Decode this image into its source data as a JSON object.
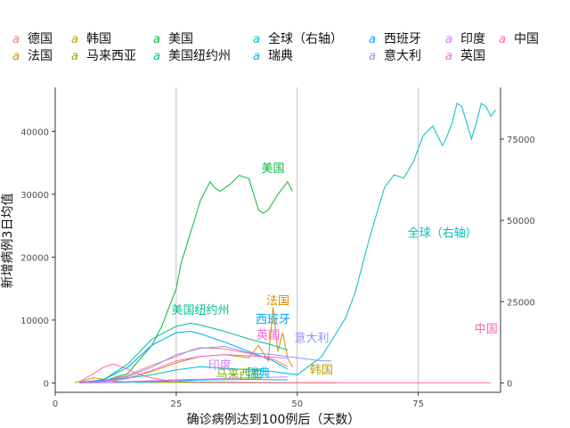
{
  "chart_data": {
    "type": "line",
    "title": "",
    "xlabel": "确诊病例达到100例后（天数）",
    "ylabel": "新增病例3日均值",
    "xlim": [
      0,
      92
    ],
    "ylim_left": [
      -1500,
      47000
    ],
    "ylim_right": [
      -2900,
      90900
    ],
    "x_ticks": [
      0,
      25,
      50,
      75
    ],
    "y_ticks_left": [
      0,
      10000,
      20000,
      30000,
      40000
    ],
    "y_ticks_right": [
      0,
      25000,
      50000,
      75000
    ],
    "grid": "vertical lines at x = 25, 50, 75",
    "legend_position": "top",
    "series": [
      {
        "name": "德国",
        "color": "#F8766D",
        "axis": "left",
        "x": [
          5,
          10,
          15,
          20,
          25,
          28,
          30,
          35,
          40,
          45,
          48
        ],
        "y": [
          50,
          300,
          1200,
          2800,
          4200,
          5200,
          5600,
          5400,
          4700,
          3800,
          2600
        ],
        "label_text": "",
        "label_x": 0,
        "label_y": 0
      },
      {
        "name": "法国",
        "color": "#DE8C00",
        "axis": "left",
        "x": [
          5,
          10,
          15,
          20,
          25,
          30,
          35,
          40,
          42,
          44,
          45,
          46,
          47,
          48,
          49
        ],
        "y": [
          50,
          200,
          800,
          1800,
          3200,
          4200,
          4500,
          4000,
          6000,
          3500,
          12000,
          5000,
          8000,
          4000,
          2500
        ],
        "label_text": "法国",
        "label_x": 46,
        "label_y": 12500
      },
      {
        "name": "韩国",
        "color": "#B79F00",
        "axis": "left",
        "x": [
          4,
          6,
          8,
          10,
          12,
          15,
          20,
          25,
          30,
          35,
          40,
          45,
          50,
          55,
          58
        ],
        "y": [
          50,
          400,
          800,
          600,
          300,
          150,
          100,
          90,
          60,
          40,
          30,
          20,
          15,
          10,
          10
        ],
        "label_text": "韩国",
        "label_x": 55,
        "label_y": 1500
      },
      {
        "name": "马来西亚",
        "color": "#7CAE00",
        "axis": "left",
        "x": [
          5,
          10,
          15,
          20,
          25,
          30,
          35,
          40,
          45
        ],
        "y": [
          20,
          60,
          120,
          160,
          150,
          130,
          110,
          80,
          50
        ],
        "label_text": "马来西亚",
        "label_x": 38,
        "label_y": 800
      },
      {
        "name": "美国",
        "color": "#00BA38",
        "axis": "left",
        "x": [
          5,
          10,
          15,
          20,
          22,
          25,
          26,
          28,
          30,
          32,
          33,
          34,
          36,
          38,
          40,
          41,
          42,
          43,
          44,
          46,
          48,
          49
        ],
        "y": [
          50,
          300,
          1500,
          6000,
          9000,
          15000,
          19000,
          24000,
          29000,
          32000,
          31000,
          30500,
          31500,
          33000,
          32500,
          30000,
          27500,
          27000,
          27500,
          30000,
          32000,
          30500
        ],
        "label_text": "美国",
        "label_x": 45,
        "label_y": 33500
      },
      {
        "name": "美国纽约州",
        "color": "#00C08B",
        "axis": "left",
        "x": [
          5,
          10,
          15,
          20,
          25,
          28,
          30,
          35,
          40,
          45,
          48
        ],
        "y": [
          50,
          500,
          3000,
          7000,
          9000,
          9500,
          9200,
          8200,
          7000,
          6000,
          5200
        ],
        "label_text": "美国纽约州",
        "label_x": 30,
        "label_y": 11000
      },
      {
        "name": "全球（右轴）",
        "color": "#00BFC4",
        "axis": "right",
        "x": [
          5,
          10,
          15,
          20,
          25,
          30,
          35,
          40,
          45,
          50,
          55,
          60,
          62,
          65,
          68,
          70,
          72,
          74,
          76,
          78,
          80,
          81,
          82,
          83,
          84,
          85,
          86,
          87,
          88,
          89,
          90,
          91
        ],
        "y": [
          200,
          800,
          1500,
          2500,
          4000,
          5000,
          4500,
          4000,
          3500,
          2500,
          8000,
          20000,
          28000,
          45000,
          60000,
          64000,
          63000,
          68000,
          76000,
          79000,
          73000,
          76000,
          80000,
          86000,
          85000,
          80000,
          75000,
          80000,
          86000,
          85000,
          82000,
          84000
        ],
        "label_text": "全球（右轴）",
        "label_x": 80,
        "label_y": 45000
      },
      {
        "name": "瑞典",
        "color": "#00B4EF",
        "axis": "left",
        "x": [
          5,
          10,
          15,
          20,
          25,
          30,
          35,
          40,
          45,
          48
        ],
        "y": [
          20,
          50,
          100,
          200,
          350,
          450,
          500,
          550,
          500,
          480
        ],
        "label_text": "瑞典",
        "label_x": 42,
        "label_y": 1000
      },
      {
        "name": "西班牙",
        "color": "#00A5FF",
        "axis": "left",
        "x": [
          5,
          10,
          15,
          20,
          25,
          28,
          30,
          35,
          40,
          45,
          48
        ],
        "y": [
          80,
          500,
          2500,
          6000,
          8000,
          8200,
          7800,
          6500,
          5000,
          3500,
          2200
        ],
        "label_text": "西班牙",
        "label_x": 45,
        "label_y": 9500
      },
      {
        "name": "意大利",
        "color": "#8B93FF",
        "axis": "left",
        "x": [
          5,
          10,
          15,
          20,
          25,
          30,
          35,
          40,
          45,
          50,
          55,
          57
        ],
        "y": [
          50,
          300,
          1000,
          2500,
          4500,
          5500,
          5800,
          4800,
          4500,
          4000,
          3500,
          3500
        ],
        "label_text": "意大利",
        "label_x": 53,
        "label_y": 6500
      },
      {
        "name": "印度",
        "color": "#D575FE",
        "axis": "left",
        "x": [
          5,
          10,
          15,
          20,
          25,
          30,
          35,
          40,
          45,
          48
        ],
        "y": [
          20,
          80,
          200,
          350,
          500,
          600,
          700,
          800,
          900,
          950
        ],
        "label_text": "印度",
        "label_x": 34,
        "label_y": 2200
      },
      {
        "name": "英国",
        "color": "#F962DD",
        "axis": "left",
        "x": [
          5,
          10,
          15,
          20,
          25,
          30,
          35,
          40,
          45,
          48
        ],
        "y": [
          30,
          200,
          700,
          2000,
          3500,
          4200,
          4500,
          4300,
          4100,
          3900
        ],
        "label_text": "英国",
        "label_x": 44,
        "label_y": 7000
      },
      {
        "name": "中国",
        "color": "#FF65AC",
        "axis": "left",
        "x": [
          5,
          8,
          10,
          12,
          14,
          16,
          18,
          20,
          22,
          25,
          30,
          40,
          50,
          60,
          70,
          80,
          90
        ],
        "y": [
          200,
          1500,
          2500,
          3000,
          2500,
          1800,
          1200,
          800,
          500,
          300,
          100,
          50,
          40,
          30,
          30,
          20,
          20
        ],
        "label_text": "中国",
        "label_x": 89,
        "label_y": 8000
      }
    ]
  }
}
